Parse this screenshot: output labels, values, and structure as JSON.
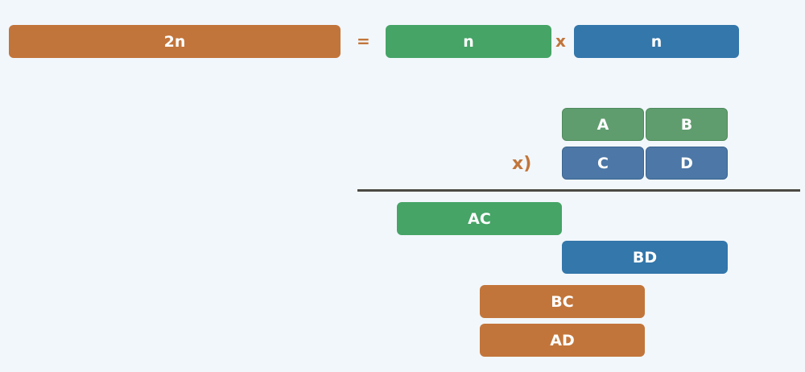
{
  "equation": {
    "lhs_label": "2n",
    "equals_sign": "=",
    "factor1_label": "n",
    "times_sign": "x",
    "factor2_label": "n"
  },
  "split": {
    "top_left": "A",
    "top_right": "B",
    "bottom_left": "C",
    "bottom_right": "D",
    "multiply_mark": "x)"
  },
  "products": {
    "ac": "AC",
    "bd": "BD",
    "bc": "BC",
    "ad": "AD"
  },
  "colors": {
    "background": "#f2f7fb",
    "orange": "#c2753a",
    "green": "#45a466",
    "blue": "#3377ab",
    "rule": "#4b4a44"
  }
}
